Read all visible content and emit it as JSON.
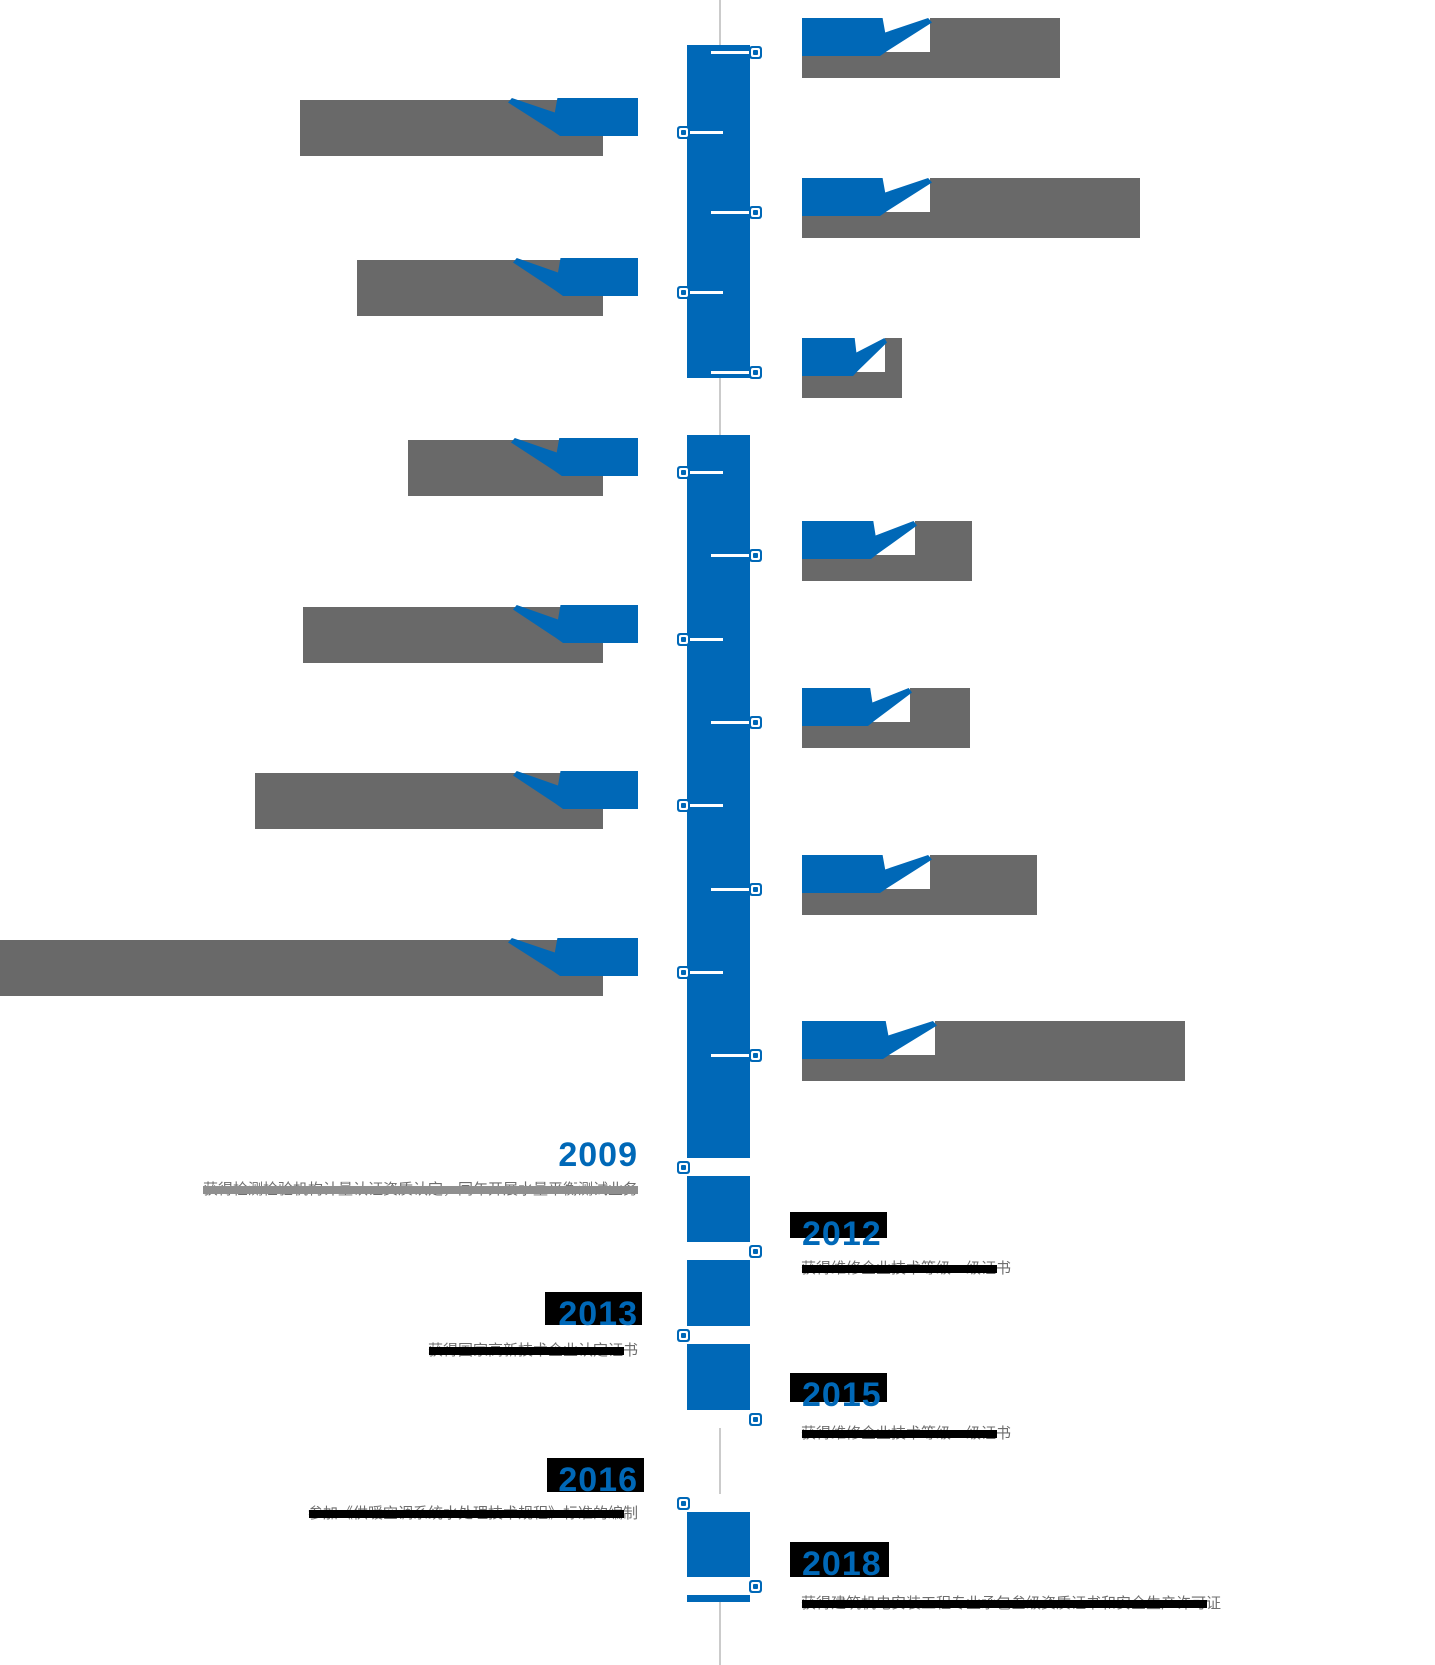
{
  "page": {
    "background_color": "#ffffff",
    "description": "company development history timeline"
  },
  "timeline": {
    "accent_color": "#0068b7",
    "center_line_color": "#cbcbcb",
    "obscured_block_color": "#696969",
    "strike_band_black": "#000000",
    "strike_band_gray": "#8f8f8f",
    "entries": [
      {
        "position": "right",
        "obscured": true
      },
      {
        "position": "left",
        "obscured": true
      },
      {
        "position": "right",
        "obscured": true
      },
      {
        "position": "left",
        "obscured": true
      },
      {
        "position": "right",
        "obscured": true
      },
      {
        "position": "left",
        "obscured": true
      },
      {
        "position": "right",
        "obscured": true
      },
      {
        "position": "left",
        "obscured": true
      },
      {
        "position": "right",
        "obscured": true
      },
      {
        "position": "left",
        "obscured": true
      },
      {
        "position": "right",
        "obscured": true
      },
      {
        "position": "left",
        "obscured": true
      },
      {
        "position": "right",
        "obscured": true
      },
      {
        "position": "left",
        "obscured": false,
        "year": "2009",
        "desc": "获得检测检验机构计量认证资质认定，同年开展水量平衡测试业务"
      },
      {
        "position": "right",
        "obscured": false,
        "year": "2012",
        "desc": "获得维修企业技术等级一级证书"
      },
      {
        "position": "left",
        "obscured": false,
        "year": "2013",
        "desc": "获得国家高新技术企业认定证书"
      },
      {
        "position": "right",
        "obscured": false,
        "year": "2015",
        "desc": "获得维修企业技术等级一级证书"
      },
      {
        "position": "left",
        "obscured": false,
        "year": "2016",
        "desc": "参加《供暖空调系统水处理技术规程》标准的编制"
      },
      {
        "position": "right",
        "obscured": false,
        "year": "2018",
        "desc": "获得建筑机电安装工程专业承包叁级资质证书和安全生产许可证"
      }
    ]
  }
}
